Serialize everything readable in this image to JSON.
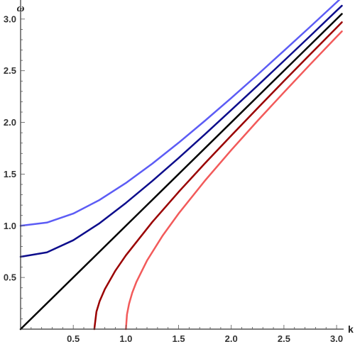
{
  "chart_data": {
    "type": "line",
    "xlabel": "k",
    "ylabel": "ω",
    "xlim": [
      0,
      3.05
    ],
    "ylim": [
      0,
      3.15
    ],
    "x_ticks": [
      {
        "value": 0.5,
        "label": "0.5"
      },
      {
        "value": 1.0,
        "label": "1.0"
      },
      {
        "value": 1.5,
        "label": "1.5"
      },
      {
        "value": 2.0,
        "label": "2.0"
      },
      {
        "value": 2.5,
        "label": "2.5"
      },
      {
        "value": 3.0,
        "label": "3.0"
      }
    ],
    "y_ticks": [
      {
        "value": 0.5,
        "label": "0.5"
      },
      {
        "value": 1.0,
        "label": "1.0"
      },
      {
        "value": 1.5,
        "label": "1.5"
      },
      {
        "value": 2.0,
        "label": "2.0"
      },
      {
        "value": 2.5,
        "label": "2.5"
      },
      {
        "value": 3.0,
        "label": "3.0"
      }
    ],
    "grid": false,
    "series": [
      {
        "color": "#5c5cf5",
        "x": [
          0,
          0.25,
          0.5,
          0.75,
          1.0,
          1.25,
          1.5,
          1.75,
          2.0,
          2.25,
          2.5,
          2.75,
          3.0,
          3.05
        ],
        "y": [
          1.0,
          1.031,
          1.118,
          1.25,
          1.414,
          1.601,
          1.803,
          2.016,
          2.236,
          2.462,
          2.693,
          2.926,
          3.162,
          3.209
        ]
      },
      {
        "color": "#0d0d8c",
        "x": [
          0,
          0.25,
          0.5,
          0.75,
          1.0,
          1.25,
          1.5,
          1.75,
          2.0,
          2.25,
          2.5,
          2.75,
          3.0,
          3.05
        ],
        "y": [
          0.7,
          0.743,
          0.86,
          1.025,
          1.221,
          1.433,
          1.655,
          1.885,
          2.12,
          2.356,
          2.596,
          2.837,
          3.081,
          3.129
        ]
      },
      {
        "color": "#000000",
        "x": [
          0,
          0.5,
          1.0,
          1.5,
          2.0,
          2.5,
          3.0,
          3.05
        ],
        "y": [
          0,
          0.5,
          1.0,
          1.5,
          2.0,
          2.5,
          3.0,
          3.05
        ]
      },
      {
        "color": "#9a0000",
        "x": [
          0.7,
          0.72,
          0.75,
          0.8,
          0.9,
          1.0,
          1.25,
          1.5,
          1.75,
          2.0,
          2.25,
          2.5,
          2.75,
          3.0,
          3.05
        ],
        "y": [
          0,
          0.168,
          0.269,
          0.387,
          0.566,
          0.714,
          1.036,
          1.327,
          1.604,
          1.873,
          2.138,
          2.4,
          2.659,
          2.917,
          2.969
        ]
      },
      {
        "color": "#f25a5a",
        "x": [
          1.0,
          1.01,
          1.03,
          1.06,
          1.1,
          1.2,
          1.35,
          1.5,
          1.75,
          2.0,
          2.25,
          2.5,
          2.75,
          3.0,
          3.05
        ],
        "y": [
          0,
          0.142,
          0.246,
          0.352,
          0.458,
          0.663,
          0.907,
          1.118,
          1.436,
          1.732,
          2.016,
          2.291,
          2.562,
          2.828,
          2.881
        ]
      }
    ]
  }
}
